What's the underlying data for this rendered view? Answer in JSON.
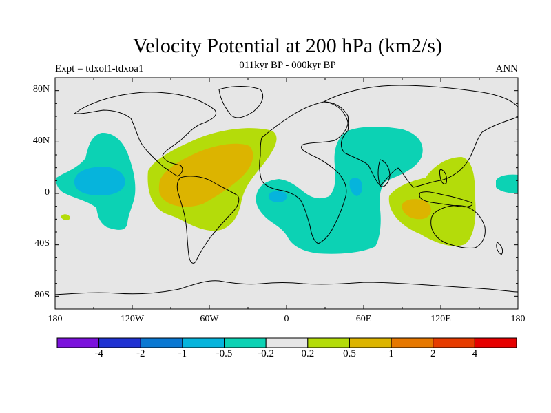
{
  "title": "Velocity Potential at 200 hPa (km2/s)",
  "subtitle": "011kyr BP - 000kyr BP",
  "experiment": "Expt = tdxol1-tdxoa1",
  "season": "ANN",
  "lat_labels": [
    "80N",
    "40N",
    "0",
    "40S",
    "80S"
  ],
  "lon_labels": [
    "180",
    "120W",
    "60W",
    "0",
    "60E",
    "120E",
    "180"
  ],
  "colorbar": {
    "labels": [
      "-4",
      "-2",
      "-1",
      "-0.5",
      "-0.2",
      "0.2",
      "0.5",
      "1",
      "2",
      "4"
    ],
    "colors": [
      "#7b12dc",
      "#2032d2",
      "#0a78d2",
      "#06b4dc",
      "#0cd2b4",
      "#e6e6e6",
      "#b4dc0a",
      "#dcb400",
      "#e67800",
      "#e63c00",
      "#e60000"
    ]
  },
  "fill_colors": {
    "background": "#e6e6e6",
    "neg_weak": "#0cd2b4",
    "neg_mid": "#06b4dc",
    "pos_weak": "#b4dc0a",
    "pos_mid": "#dcb400"
  }
}
